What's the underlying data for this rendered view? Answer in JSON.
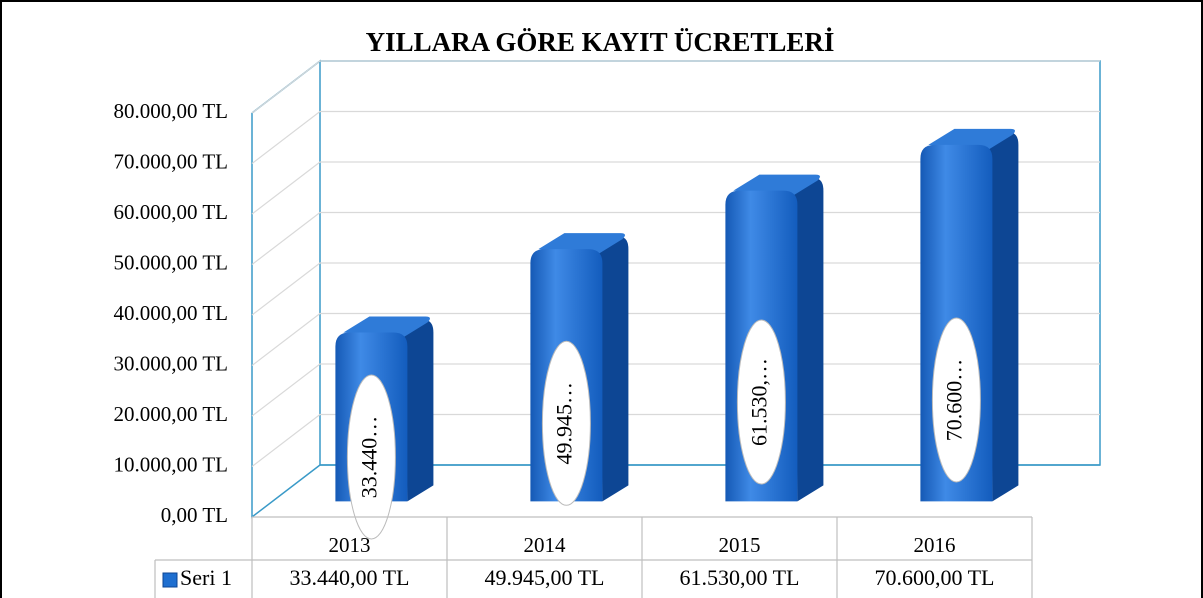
{
  "chart_data": {
    "type": "bar3d",
    "title": "YILLARA GÖRE KAYIT ÜCRETLERİ",
    "categories": [
      "2013",
      "2014",
      "2015",
      "2016"
    ],
    "series": [
      {
        "name": "Seri 1",
        "color": "#1f6fd0",
        "values": [
          33440,
          49945,
          61530,
          70600
        ],
        "value_labels": [
          "33.440…",
          "49.945…",
          "61.530,…",
          "70.600…"
        ]
      }
    ],
    "data_table": [
      "33.440,00 TL",
      "49.945,00 TL",
      "61.530,00 TL",
      "70.600,00 TL"
    ],
    "ylim": [
      0,
      80000
    ],
    "yticks": [
      {
        "value": 0,
        "label": "0,00 TL"
      },
      {
        "value": 10000,
        "label": "10.000,00 TL"
      },
      {
        "value": 20000,
        "label": "20.000,00 TL"
      },
      {
        "value": 30000,
        "label": "30.000,00 TL"
      },
      {
        "value": 40000,
        "label": "40.000,00 TL"
      },
      {
        "value": 50000,
        "label": "50.000,00 TL"
      },
      {
        "value": 60000,
        "label": "60.000,00 TL"
      },
      {
        "value": 70000,
        "label": "70.000,00 TL"
      },
      {
        "value": 80000,
        "label": "80.000,00 TL"
      }
    ],
    "grid": true
  }
}
